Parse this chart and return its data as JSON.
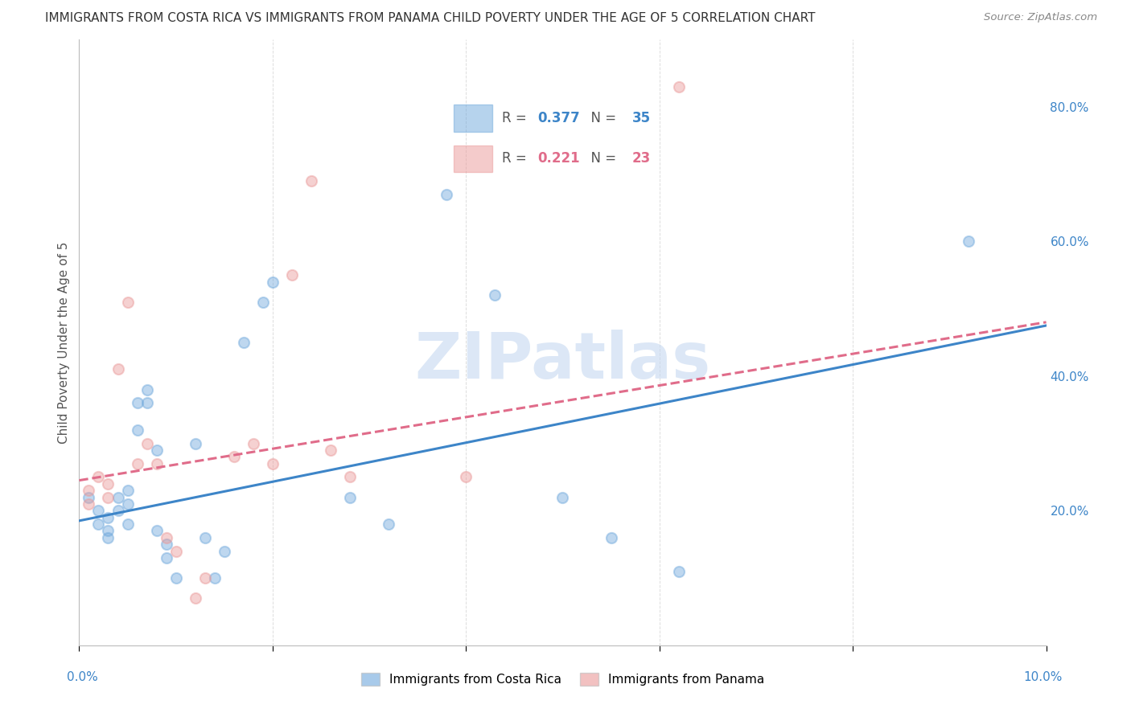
{
  "title": "IMMIGRANTS FROM COSTA RICA VS IMMIGRANTS FROM PANAMA CHILD POVERTY UNDER THE AGE OF 5 CORRELATION CHART",
  "source": "Source: ZipAtlas.com",
  "ylabel": "Child Poverty Under the Age of 5",
  "watermark": "ZIPatlas",
  "xlim": [
    0.0,
    0.1
  ],
  "ylim": [
    0.0,
    0.9
  ],
  "cr_R": 0.377,
  "cr_N": 35,
  "pan_R": 0.221,
  "pan_N": 23,
  "cr_color": "#6fa8dc",
  "pan_color": "#ea9999",
  "cr_line_color": "#3d85c8",
  "pan_line_color": "#e06c8a",
  "costa_rica_x": [
    0.001,
    0.002,
    0.002,
    0.003,
    0.003,
    0.003,
    0.004,
    0.004,
    0.005,
    0.005,
    0.005,
    0.006,
    0.006,
    0.007,
    0.007,
    0.008,
    0.008,
    0.009,
    0.009,
    0.01,
    0.012,
    0.013,
    0.014,
    0.015,
    0.017,
    0.019,
    0.02,
    0.028,
    0.032,
    0.038,
    0.043,
    0.05,
    0.055,
    0.062,
    0.092
  ],
  "costa_rica_y": [
    0.22,
    0.18,
    0.2,
    0.19,
    0.17,
    0.16,
    0.22,
    0.2,
    0.18,
    0.21,
    0.23,
    0.32,
    0.36,
    0.38,
    0.36,
    0.29,
    0.17,
    0.15,
    0.13,
    0.1,
    0.3,
    0.16,
    0.1,
    0.14,
    0.45,
    0.51,
    0.54,
    0.22,
    0.18,
    0.67,
    0.52,
    0.22,
    0.16,
    0.11,
    0.6
  ],
  "panama_x": [
    0.001,
    0.001,
    0.002,
    0.003,
    0.003,
    0.004,
    0.005,
    0.006,
    0.007,
    0.008,
    0.009,
    0.01,
    0.012,
    0.013,
    0.016,
    0.018,
    0.02,
    0.022,
    0.024,
    0.026,
    0.028,
    0.04,
    0.062
  ],
  "panama_y": [
    0.23,
    0.21,
    0.25,
    0.22,
    0.24,
    0.41,
    0.51,
    0.27,
    0.3,
    0.27,
    0.16,
    0.14,
    0.07,
    0.1,
    0.28,
    0.3,
    0.27,
    0.55,
    0.69,
    0.29,
    0.25,
    0.25,
    0.83
  ],
  "cr_line_x": [
    0.0,
    0.1
  ],
  "cr_line_y": [
    0.185,
    0.475
  ],
  "pan_line_x": [
    0.0,
    0.1
  ],
  "pan_line_y": [
    0.245,
    0.48
  ],
  "yticks": [
    0.2,
    0.4,
    0.6,
    0.8
  ],
  "ytick_labels": [
    "20.0%",
    "40.0%",
    "60.0%",
    "80.0%"
  ],
  "bg_color": "#ffffff",
  "grid_color": "#dddddd"
}
